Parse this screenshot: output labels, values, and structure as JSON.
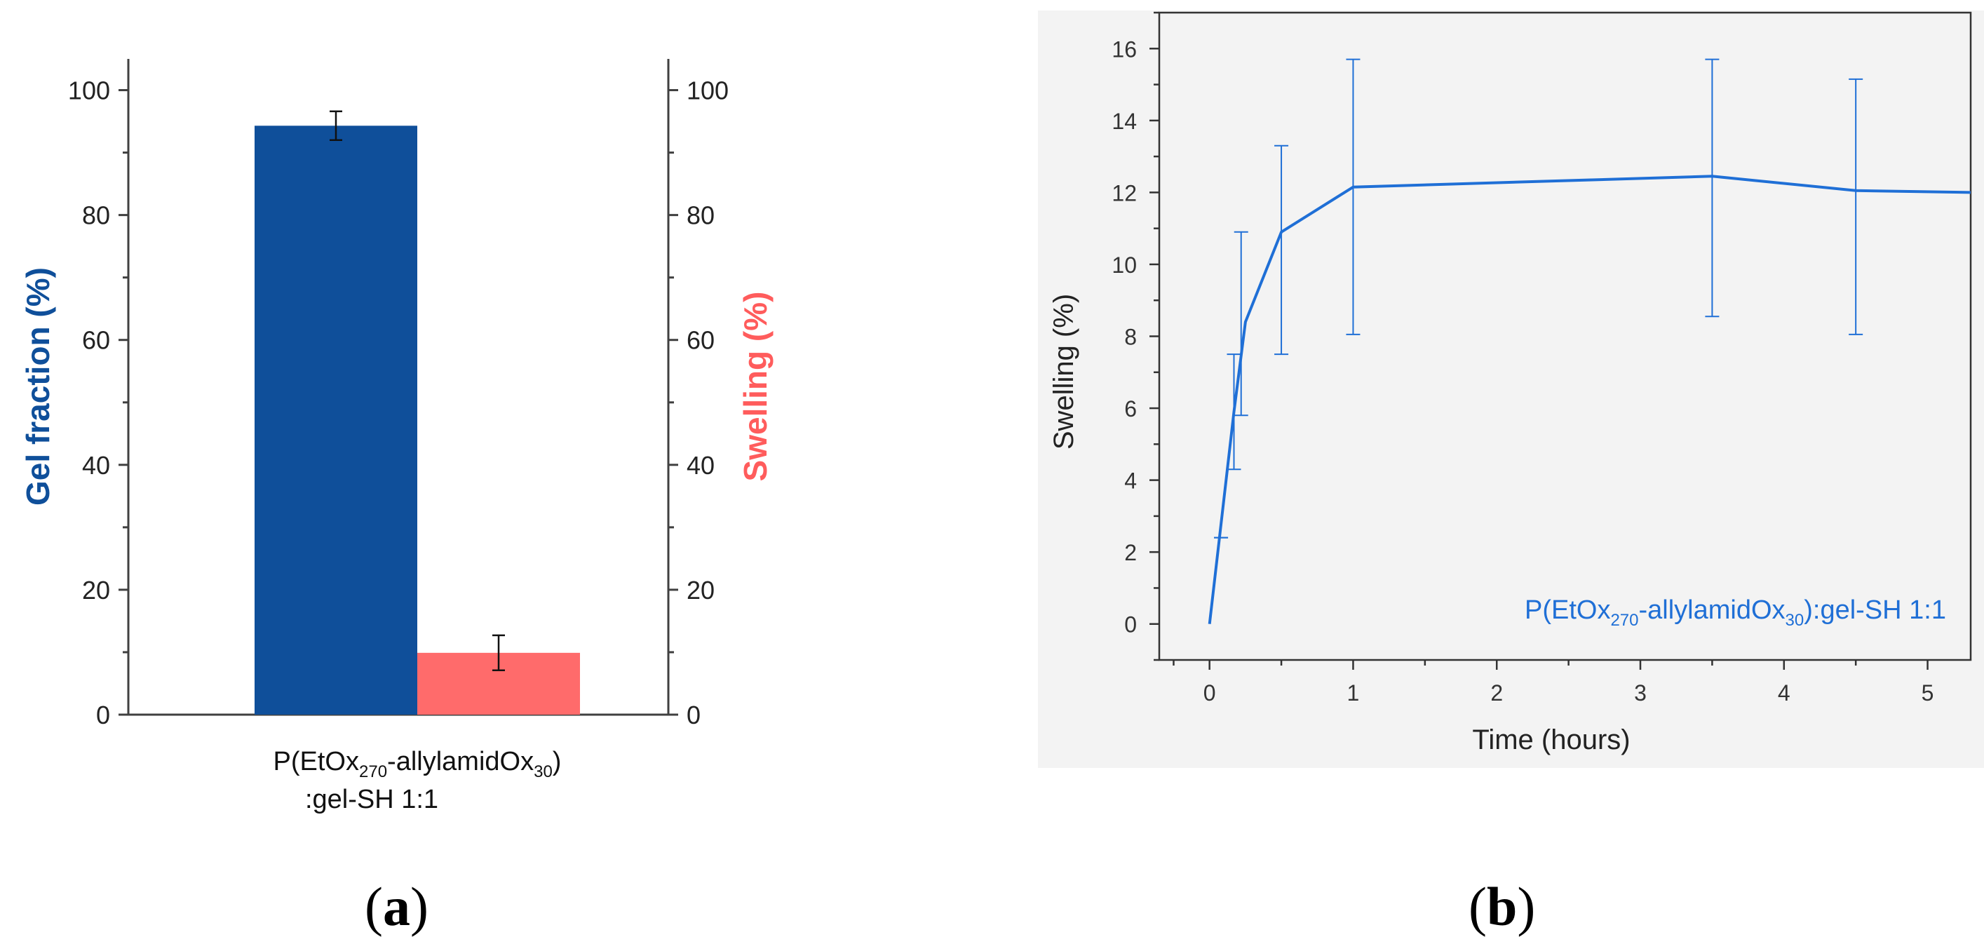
{
  "panels": {
    "a": "a",
    "b": "b"
  },
  "colors": {
    "gel": "#0f4f9a",
    "swelling_bar": "#ff6b6b",
    "swelling_label": "#ff5c5c",
    "line": "#1f6fd6",
    "axis": "#404040"
  },
  "chart_data": [
    {
      "type": "bar",
      "categories": [
        "P(EtOx270-allylamidOx30):gel-SH 1:1"
      ],
      "category_label": {
        "prefix": "P(EtOx",
        "sub1": "270",
        "mid": "-allylamidOx",
        "sub2": "30",
        "suffix": ")",
        "line2": ":gel-SH 1:1"
      },
      "series": [
        {
          "name": "Gel fraction (%)",
          "axis": "left",
          "values": [
            94.3
          ],
          "errors": [
            2.3
          ]
        },
        {
          "name": "Swelling (%)",
          "axis": "right",
          "values": [
            9.9
          ],
          "errors": [
            2.8
          ]
        }
      ],
      "ylabel_left": "Gel fraction (%)",
      "ylabel_right": "Swelling (%)",
      "ylim": [
        0,
        105
      ],
      "yticks": [
        "0",
        "20",
        "40",
        "60",
        "80",
        "100"
      ],
      "ytick_values": [
        0,
        20,
        40,
        60,
        80,
        100
      ]
    },
    {
      "type": "line",
      "x": [
        0,
        0.17,
        0.25,
        0.5,
        1,
        3.5,
        4.5,
        5.3
      ],
      "values": [
        0,
        5.9,
        8.4,
        10.9,
        12.15,
        12.45,
        12.05,
        12.0
      ],
      "errors": [
        {
          "x": 0.08,
          "lo": 2.4,
          "hi": 2.4
        },
        {
          "x": 0.17,
          "lo": 4.3,
          "hi": 7.5
        },
        {
          "x": 0.22,
          "lo": 5.8,
          "hi": 10.9
        },
        {
          "x": 0.5,
          "lo": 7.5,
          "hi": 13.3
        },
        {
          "x": 1,
          "lo": 8.05,
          "hi": 15.7
        },
        {
          "x": 3.5,
          "lo": 8.55,
          "hi": 15.7
        },
        {
          "x": 4.5,
          "lo": 8.05,
          "hi": 15.15
        }
      ],
      "annotation": {
        "prefix": "P(EtOx",
        "sub1": "270",
        "mid": "-allylamidOx",
        "sub2": "30",
        "suffix": "):gel-SH 1:1"
      },
      "xlabel": "Time (hours)",
      "ylabel": "Swelling (%)",
      "xlim": [
        -0.35,
        5.3
      ],
      "ylim": [
        -1,
        17
      ],
      "xticks": [
        "0",
        "1",
        "2",
        "3",
        "4",
        "5"
      ],
      "xtick_values": [
        0,
        1,
        2,
        3,
        4,
        5
      ],
      "yticks": [
        "0",
        "2",
        "4",
        "6",
        "8",
        "10",
        "12",
        "14",
        "16"
      ],
      "ytick_values": [
        0,
        2,
        4,
        6,
        8,
        10,
        12,
        14,
        16
      ]
    }
  ]
}
